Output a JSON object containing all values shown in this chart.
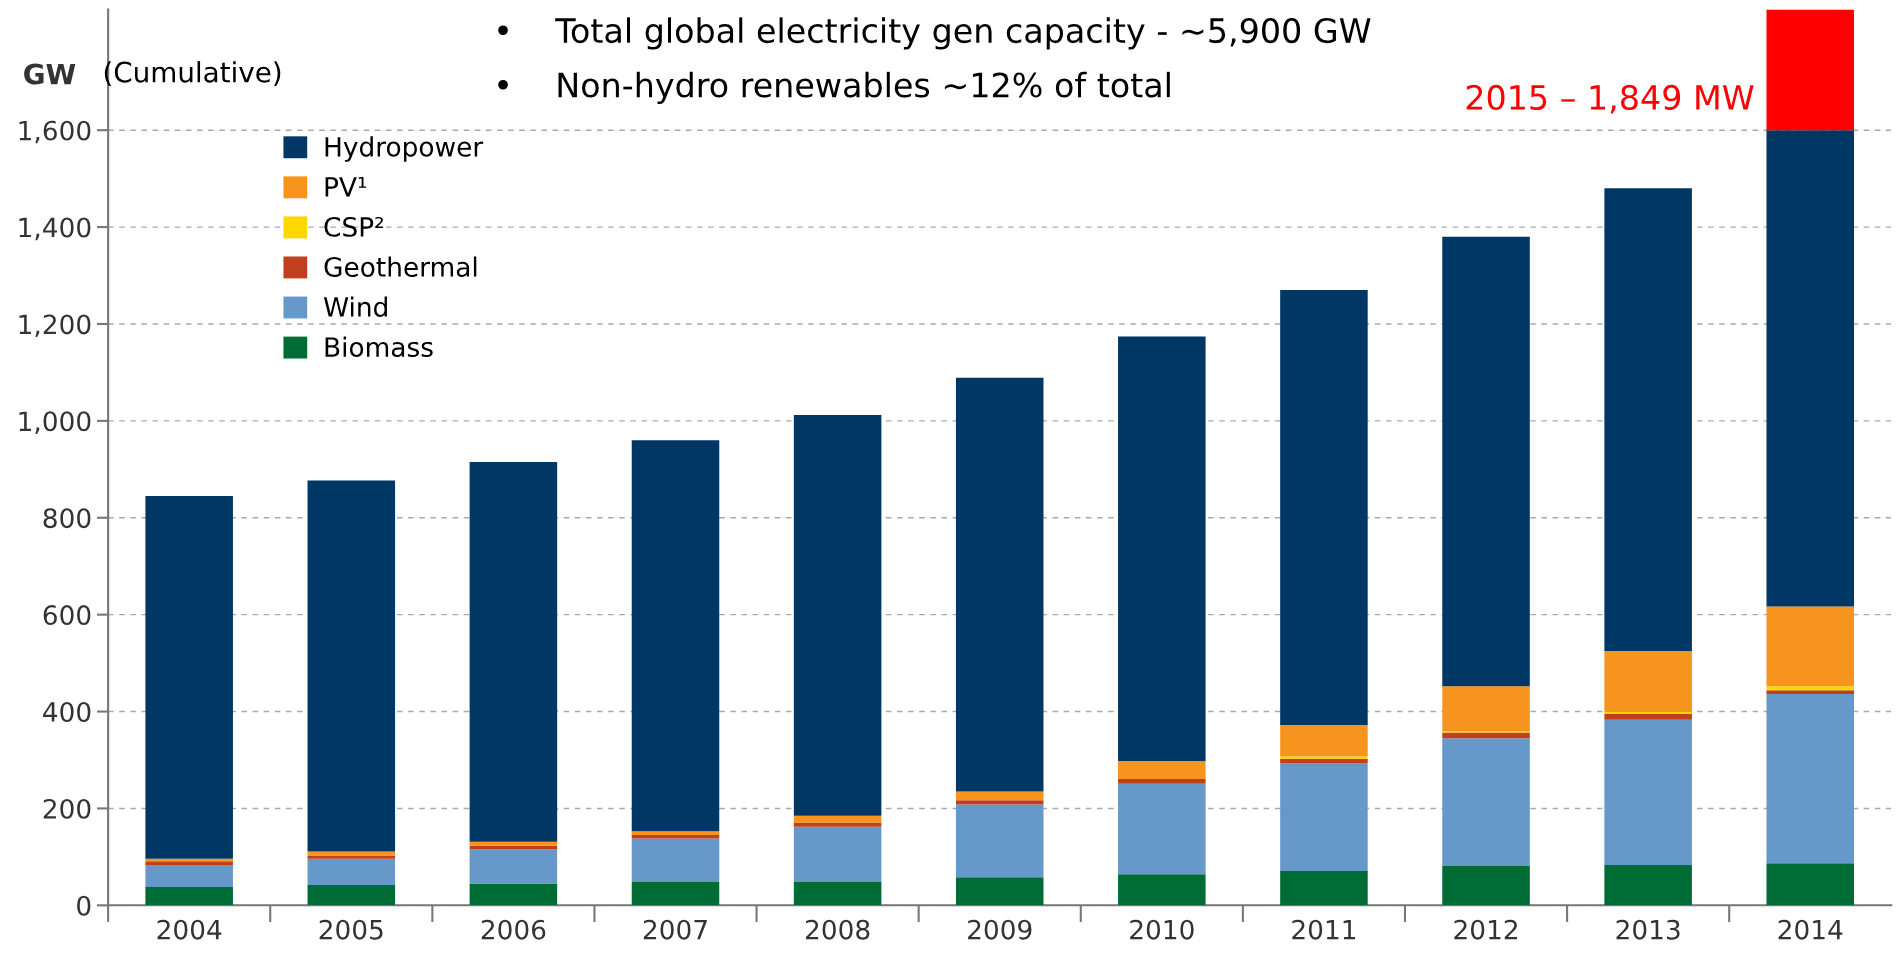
{
  "chart_data": {
    "type": "bar",
    "stacked": true,
    "ylabel": "GW",
    "categories": [
      "2004",
      "2005",
      "2006",
      "2007",
      "2008",
      "2009",
      "2010",
      "2011",
      "2012",
      "2013",
      "2014"
    ],
    "series": [
      {
        "name": "Biomass",
        "color": "#006c35",
        "values": [
          38,
          42,
          45,
          48,
          48,
          58,
          64,
          71,
          81,
          83,
          87
        ]
      },
      {
        "name": "Wind",
        "color": "#6699c9",
        "values": [
          45,
          54,
          71,
          90,
          114,
          150,
          187,
          222,
          264,
          300,
          349
        ]
      },
      {
        "name": "Geothermal",
        "color": "#c0401e",
        "values": [
          8,
          7,
          7,
          7,
          9,
          9,
          10,
          9,
          12,
          12,
          8
        ]
      },
      {
        "name": "CSP²",
        "color": "#ffd700",
        "values": [
          0,
          0,
          0,
          0,
          0,
          null,
          null,
          5,
          3,
          4,
          8
        ]
      },
      {
        "name": "PV¹",
        "color": "#f7941d",
        "values": [
          5,
          8,
          8,
          8,
          14,
          18,
          37,
          65,
          92,
          126,
          165
        ]
      },
      {
        "name": "Hydropower",
        "color": "#003764",
        "values": [
          749,
          766,
          784,
          807,
          827,
          854,
          876,
          898,
          928,
          955,
          983
        ]
      },
      {
        "color": "#ff0000",
        "values": [
          null,
          null,
          null,
          null,
          null,
          null,
          null,
          null,
          null,
          null,
          249
        ]
      }
    ],
    "ylim": [
      0,
      1849
    ],
    "yticks": [
      0,
      200,
      400,
      600,
      800,
      {
        "value": 1000,
        "label": "1,000"
      },
      {
        "value": 1200,
        "label": "1,200"
      },
      {
        "value": 1400,
        "label": "1,400"
      },
      {
        "value": 1600,
        "label": "1,600"
      }
    ],
    "grid": "y",
    "legend": "top left",
    "annotations": [
      "(Cumulative)",
      "•    Total global electricity gen capacity - ~5,900 GW",
      "•    Non-hydro renewables ~12% of total",
      "2015 – 1,849 MW"
    ]
  }
}
